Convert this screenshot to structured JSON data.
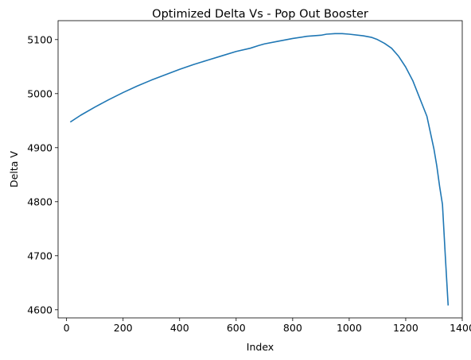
{
  "chart_data": {
    "type": "line",
    "title": "Optimized Delta Vs - Pop Out Booster",
    "xlabel": "Index",
    "ylabel": "Delta V",
    "xlim": [
      -30,
      1400
    ],
    "ylim": [
      4585,
      5135
    ],
    "xticks": [
      0,
      200,
      400,
      600,
      800,
      1000,
      1200,
      1400
    ],
    "yticks": [
      4600,
      4700,
      4800,
      4900,
      5000,
      5100
    ],
    "grid": false,
    "legend": "none",
    "series": [
      {
        "color": "#1f77b4",
        "x": [
          15,
          50,
          100,
          150,
          200,
          250,
          300,
          350,
          400,
          450,
          500,
          550,
          600,
          650,
          680,
          700,
          750,
          800,
          850,
          900,
          920,
          950,
          975,
          1000,
          1050,
          1080,
          1100,
          1125,
          1150,
          1175,
          1200,
          1225,
          1250,
          1275,
          1300,
          1310,
          1320,
          1330,
          1340,
          1350
        ],
        "y": [
          4948,
          4960,
          4975,
          4989,
          5002,
          5014,
          5025,
          5035,
          5045,
          5054,
          5062,
          5070,
          5078,
          5084,
          5089,
          5092,
          5097,
          5102,
          5106,
          5108,
          5110,
          5111,
          5111,
          5110,
          5107,
          5104,
          5100,
          5093,
          5084,
          5069,
          5049,
          5024,
          4991,
          4958,
          4897,
          4866,
          4828,
          4795,
          4700,
          4609
        ]
      }
    ]
  }
}
